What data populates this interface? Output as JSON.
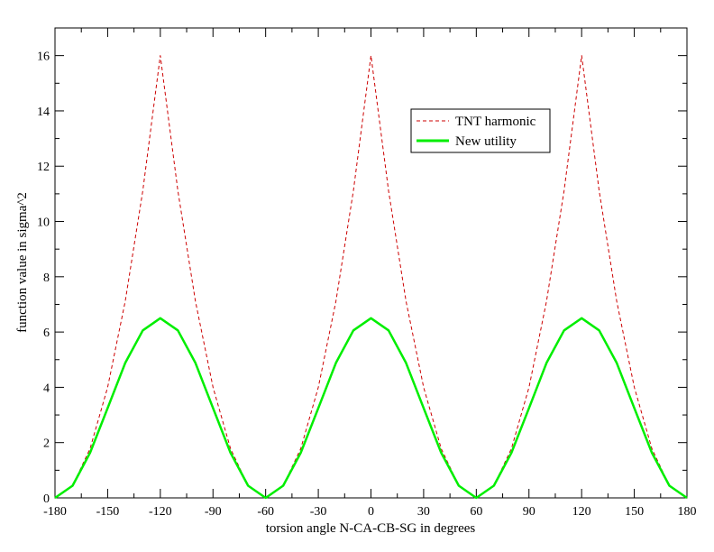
{
  "chart_data": {
    "type": "line",
    "title": "",
    "xlabel": "torsion angle N-CA-CB-SG in degrees",
    "ylabel": "function value in sigma^2",
    "xlim": [
      -180,
      180
    ],
    "ylim": [
      0,
      17
    ],
    "xticks": [
      -180,
      -150,
      -120,
      -90,
      -60,
      -30,
      0,
      30,
      60,
      90,
      120,
      150,
      180
    ],
    "yticks": [
      0,
      2,
      4,
      6,
      8,
      10,
      12,
      14,
      16
    ],
    "grid": false,
    "legend_position": "top-right",
    "series": [
      {
        "name": "TNT harmonic",
        "color": "#cc0000",
        "style": "dashed",
        "x": [
          -180,
          -170,
          -160,
          -150,
          -140,
          -130,
          -120,
          -110,
          -100,
          -90,
          -80,
          -70,
          -60,
          -50,
          -40,
          -30,
          -20,
          -10,
          0,
          10,
          20,
          30,
          40,
          50,
          60,
          70,
          80,
          90,
          100,
          110,
          120,
          130,
          140,
          150,
          160,
          170,
          180
        ],
        "y": [
          0,
          0.44,
          1.78,
          4,
          7.11,
          11.11,
          16,
          11.11,
          7.11,
          4,
          1.78,
          0.44,
          0,
          0.44,
          1.78,
          4,
          7.11,
          11.11,
          16,
          11.11,
          7.11,
          4,
          1.78,
          0.44,
          0,
          0.44,
          1.78,
          4,
          7.11,
          11.11,
          16,
          11.11,
          7.11,
          4,
          1.78,
          0.44,
          0
        ]
      },
      {
        "name": "New utility",
        "color": "#00ee00",
        "style": "solid",
        "x": [
          -180,
          -170,
          -160,
          -150,
          -140,
          -130,
          -120,
          -110,
          -100,
          -90,
          -80,
          -70,
          -60,
          -50,
          -40,
          -30,
          -20,
          -10,
          0,
          10,
          20,
          30,
          40,
          50,
          60,
          70,
          80,
          90,
          100,
          110,
          120,
          130,
          140,
          150,
          160,
          170,
          180
        ],
        "y": [
          0,
          0.44,
          1.63,
          3.25,
          4.88,
          6.06,
          6.5,
          6.06,
          4.88,
          3.25,
          1.63,
          0.44,
          0,
          0.44,
          1.63,
          3.25,
          4.88,
          6.06,
          6.5,
          6.06,
          4.88,
          3.25,
          1.63,
          0.44,
          0,
          0.44,
          1.63,
          3.25,
          4.88,
          6.06,
          6.5,
          6.06,
          4.88,
          3.25,
          1.63,
          0.44,
          0
        ]
      }
    ]
  }
}
